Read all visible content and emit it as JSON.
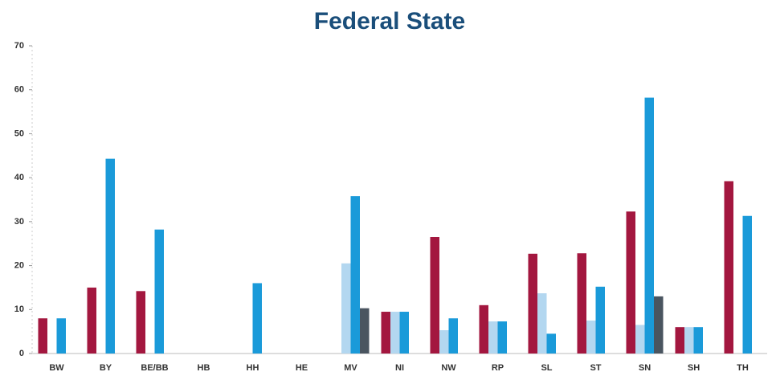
{
  "chart_data": {
    "type": "bar",
    "title": "Federal State",
    "categories": [
      "BW",
      "BY",
      "BE/BB",
      "HB",
      "HH",
      "HE",
      "MV",
      "NI",
      "NW",
      "RP",
      "SL",
      "ST",
      "SN",
      "SH",
      "TH"
    ],
    "series": [
      {
        "color": "#a3173f",
        "values": [
          8,
          15,
          14.2,
          null,
          null,
          null,
          null,
          9.5,
          26.5,
          11,
          22.7,
          22.8,
          32.3,
          6,
          39.2
        ]
      },
      {
        "color": "#b3d7f0",
        "values": [
          null,
          null,
          null,
          null,
          null,
          null,
          20.5,
          9.5,
          5.3,
          7.3,
          13.7,
          7.5,
          6.5,
          6,
          null
        ]
      },
      {
        "color": "#1a9ad9",
        "values": [
          8,
          44.3,
          28.2,
          null,
          16,
          null,
          35.8,
          9.5,
          8,
          7.3,
          4.5,
          15.2,
          58.2,
          6,
          31.3
        ]
      },
      {
        "color": "#4a5560",
        "values": [
          null,
          null,
          null,
          null,
          null,
          null,
          10.3,
          null,
          null,
          null,
          null,
          null,
          13,
          null,
          null
        ]
      }
    ],
    "ylim": [
      0,
      70
    ],
    "yticks": [
      0,
      10,
      20,
      30,
      40,
      50,
      60,
      70
    ],
    "grid": false
  }
}
